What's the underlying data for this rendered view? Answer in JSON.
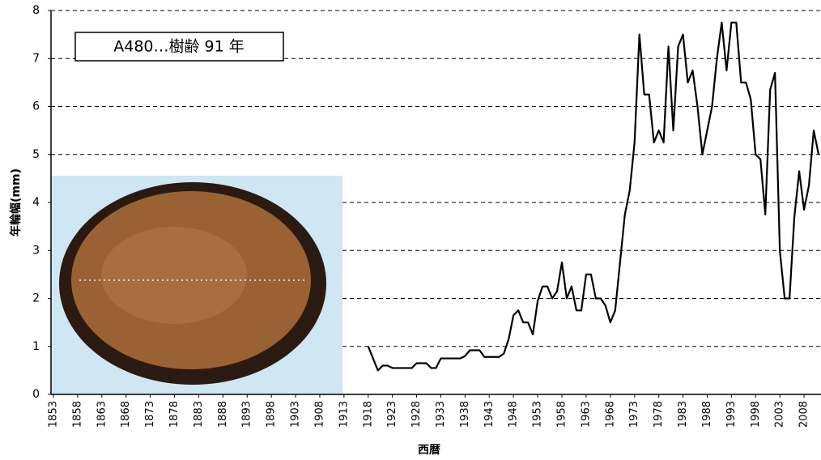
{
  "chart_data": {
    "type": "line",
    "annotation": "A480…樹齢 91 年",
    "x_label": "西暦",
    "y_label": "年輪幅(mm)",
    "x": [
      1918,
      1919,
      1920,
      1921,
      1922,
      1923,
      1924,
      1925,
      1926,
      1927,
      1928,
      1929,
      1930,
      1931,
      1932,
      1933,
      1934,
      1935,
      1936,
      1937,
      1938,
      1939,
      1940,
      1941,
      1942,
      1943,
      1944,
      1945,
      1946,
      1947,
      1948,
      1949,
      1950,
      1951,
      1952,
      1953,
      1954,
      1955,
      1956,
      1957,
      1958,
      1959,
      1960,
      1961,
      1962,
      1963,
      1964,
      1965,
      1966,
      1967,
      1968,
      1969,
      1970,
      1971,
      1972,
      1973,
      1974,
      1975,
      1976,
      1977,
      1978,
      1979,
      1980,
      1981,
      1982,
      1983,
      1984,
      1985,
      1986,
      1987,
      1988,
      1989,
      1990,
      1991,
      1992,
      1993,
      1994,
      1995,
      1996,
      1997,
      1998,
      1999,
      2000,
      2001,
      2002,
      2003,
      2004,
      2005,
      2006,
      2007,
      2008,
      2009,
      2010,
      2011
    ],
    "values": [
      1.0,
      0.75,
      0.5,
      0.6,
      0.6,
      0.55,
      0.55,
      0.55,
      0.55,
      0.55,
      0.65,
      0.65,
      0.65,
      0.55,
      0.55,
      0.75,
      0.75,
      0.75,
      0.75,
      0.75,
      0.8,
      0.92,
      0.92,
      0.92,
      0.78,
      0.78,
      0.78,
      0.78,
      0.85,
      1.15,
      1.65,
      1.75,
      1.5,
      1.5,
      1.25,
      1.95,
      2.25,
      2.25,
      2.0,
      2.15,
      2.75,
      2.0,
      2.25,
      1.75,
      1.75,
      2.5,
      2.5,
      2.0,
      2.0,
      1.85,
      1.5,
      1.75,
      2.75,
      3.75,
      4.25,
      5.25,
      7.5,
      6.25,
      6.25,
      5.25,
      5.5,
      5.25,
      7.25,
      5.5,
      7.25,
      7.5,
      6.5,
      6.75,
      6.0,
      5.0,
      5.5,
      6.0,
      7.0,
      7.75,
      6.75,
      7.75,
      7.75,
      6.5,
      6.5,
      6.15,
      5.0,
      4.9,
      3.75,
      6.35,
      6.7,
      3.0,
      2.0,
      2.0,
      3.7,
      4.65,
      3.85,
      4.35,
      5.5,
      5.0
    ],
    "color": "#000000",
    "xlim": [
      1852.5,
      2011.5
    ],
    "xticks": [
      1853,
      1858,
      1863,
      1868,
      1873,
      1878,
      1883,
      1888,
      1893,
      1898,
      1903,
      1908,
      1913,
      1918,
      1923,
      1928,
      1933,
      1938,
      1943,
      1948,
      1953,
      1958,
      1963,
      1968,
      1973,
      1978,
      1983,
      1988,
      1993,
      1998,
      2003,
      2008
    ],
    "ylim": [
      0,
      8
    ],
    "yticks": [
      0,
      1,
      2,
      3,
      4,
      5,
      6,
      7,
      8
    ],
    "grid": true
  }
}
